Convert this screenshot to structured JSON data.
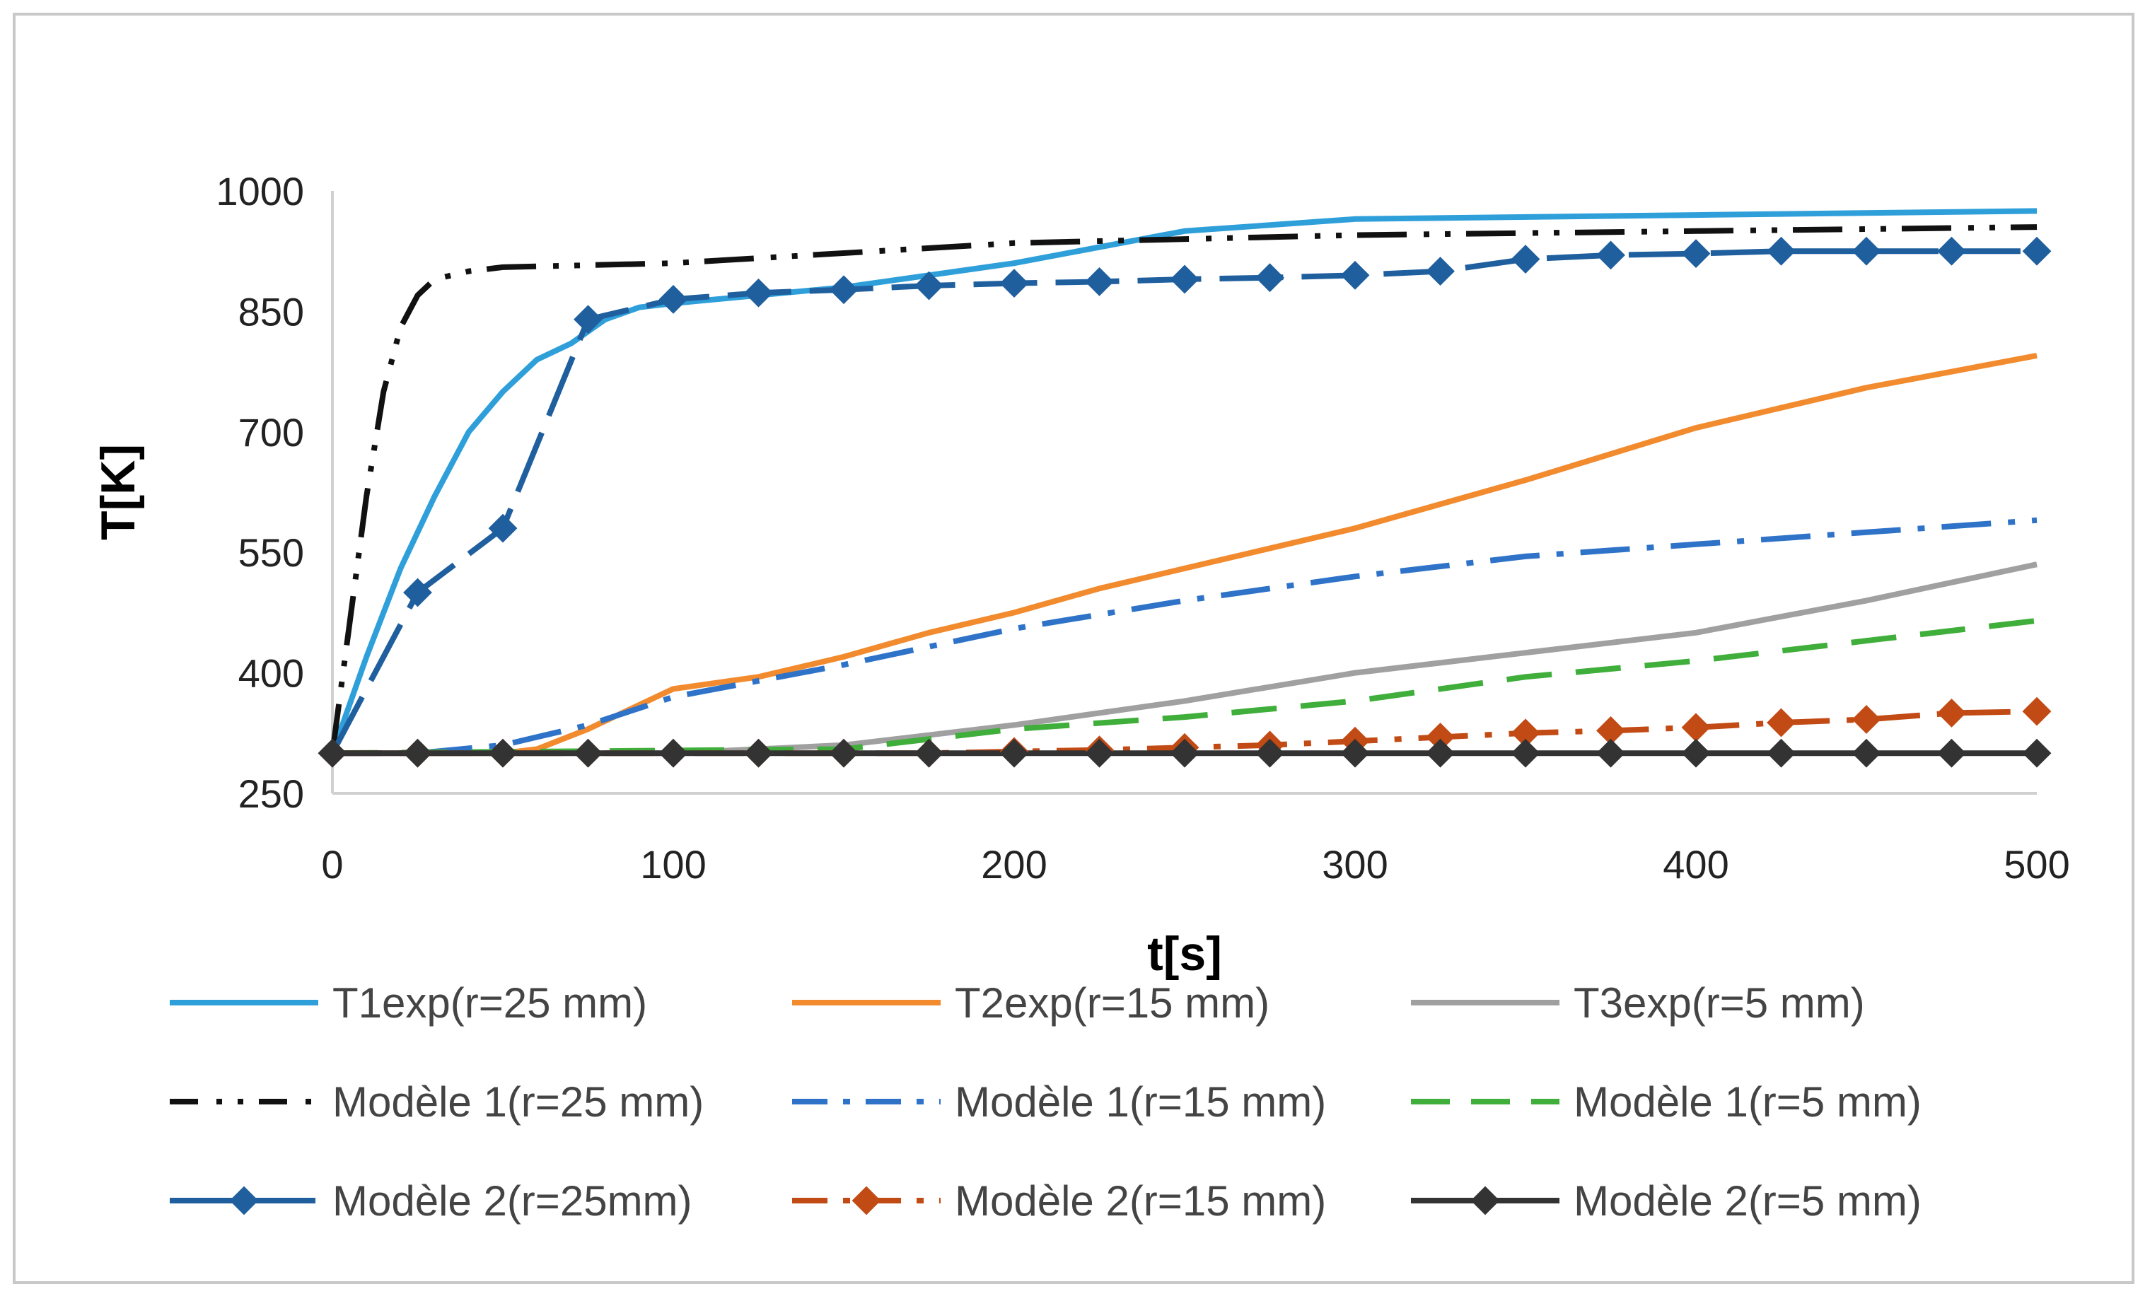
{
  "chart_data": {
    "type": "line",
    "title": "",
    "xlabel": "t[s]",
    "ylabel": "T[K]",
    "xlim": [
      0,
      500
    ],
    "ylim": [
      250,
      1000
    ],
    "xticks": [
      0,
      100,
      200,
      300,
      400,
      500
    ],
    "yticks": [
      250,
      400,
      550,
      700,
      850,
      1000
    ],
    "xtick_labels": [
      "0",
      "100",
      "200",
      "300",
      "400",
      "500"
    ],
    "ytick_labels": [
      "250",
      "400",
      "550",
      "700",
      "850",
      "1000"
    ],
    "grid": false,
    "legend_position": "bottom",
    "series": [
      {
        "name": "T1exp(r=25 mm)",
        "color": "#2f9fda",
        "style": "solid",
        "marker": "none",
        "x": [
          0,
          10,
          20,
          30,
          40,
          50,
          60,
          70,
          80,
          90,
          100,
          150,
          200,
          250,
          300,
          400,
          500
        ],
        "y": [
          300,
          420,
          530,
          620,
          700,
          750,
          790,
          810,
          840,
          855,
          860,
          880,
          910,
          950,
          965,
          970,
          975
        ]
      },
      {
        "name": "T2exp(r=15 mm)",
        "color": "#f28a2e",
        "style": "solid",
        "marker": "none",
        "x": [
          0,
          50,
          60,
          75,
          90,
          100,
          125,
          150,
          175,
          200,
          225,
          250,
          300,
          350,
          400,
          450,
          500
        ],
        "y": [
          300,
          300,
          305,
          330,
          360,
          380,
          395,
          420,
          450,
          475,
          505,
          530,
          580,
          640,
          705,
          755,
          795
        ]
      },
      {
        "name": "T3exp(r=5 mm)",
        "color": "#a0a0a0",
        "style": "solid",
        "marker": "none",
        "x": [
          0,
          100,
          150,
          200,
          250,
          300,
          350,
          400,
          450,
          500
        ],
        "y": [
          300,
          300,
          310,
          335,
          365,
          400,
          425,
          450,
          490,
          535
        ]
      },
      {
        "name": "Modèle 1(r=25 mm)",
        "color": "#111111",
        "style": "dashdotdot",
        "marker": "none",
        "x": [
          0,
          5,
          10,
          15,
          20,
          25,
          30,
          40,
          50,
          100,
          200,
          300,
          400,
          500
        ],
        "y": [
          300,
          460,
          620,
          750,
          830,
          870,
          890,
          900,
          905,
          910,
          935,
          945,
          950,
          955
        ]
      },
      {
        "name": "Modèle 1(r=15 mm)",
        "color": "#2f73c9",
        "style": "dashdot",
        "marker": "none",
        "x": [
          0,
          25,
          50,
          75,
          100,
          150,
          200,
          250,
          300,
          350,
          400,
          450,
          500
        ],
        "y": [
          300,
          300,
          310,
          335,
          370,
          410,
          455,
          490,
          520,
          545,
          560,
          575,
          590
        ]
      },
      {
        "name": "Modèle 1(r=5 mm)",
        "color": "#3fae3a",
        "style": "dashed",
        "marker": "none",
        "x": [
          0,
          150,
          200,
          250,
          300,
          350,
          400,
          450,
          500
        ],
        "y": [
          300,
          305,
          330,
          345,
          365,
          395,
          415,
          440,
          465
        ]
      },
      {
        "name": "Modèle 2(r=25mm)",
        "color": "#1f5f9e",
        "style": "longdash",
        "marker": "diamond",
        "x": [
          0,
          25,
          50,
          75,
          100,
          125,
          150,
          175,
          200,
          225,
          250,
          275,
          300,
          325,
          350,
          375,
          400,
          425,
          450,
          475,
          500
        ],
        "y": [
          300,
          500,
          580,
          840,
          865,
          873,
          877,
          882,
          885,
          887,
          890,
          892,
          895,
          900,
          915,
          920,
          922,
          925,
          925,
          925,
          925
        ]
      },
      {
        "name": "Modèle 2(r=15 mm)",
        "color": "#c24a14",
        "style": "dashdot",
        "marker": "diamond",
        "x": [
          0,
          25,
          50,
          75,
          100,
          125,
          150,
          175,
          200,
          225,
          250,
          275,
          300,
          325,
          350,
          375,
          400,
          425,
          450,
          475,
          500
        ],
        "y": [
          300,
          300,
          300,
          300,
          300,
          300,
          300,
          300,
          302,
          304,
          307,
          310,
          315,
          320,
          325,
          328,
          332,
          338,
          342,
          350,
          352
        ]
      },
      {
        "name": "Modèle 2(r=5 mm)",
        "color": "#333333",
        "style": "solid",
        "marker": "diamond",
        "x": [
          0,
          25,
          50,
          75,
          100,
          125,
          150,
          175,
          200,
          225,
          250,
          275,
          300,
          325,
          350,
          375,
          400,
          425,
          450,
          475,
          500
        ],
        "y": [
          300,
          300,
          300,
          300,
          300,
          300,
          300,
          300,
          300,
          300,
          300,
          300,
          300,
          300,
          300,
          300,
          300,
          300,
          300,
          300,
          300
        ]
      }
    ]
  }
}
